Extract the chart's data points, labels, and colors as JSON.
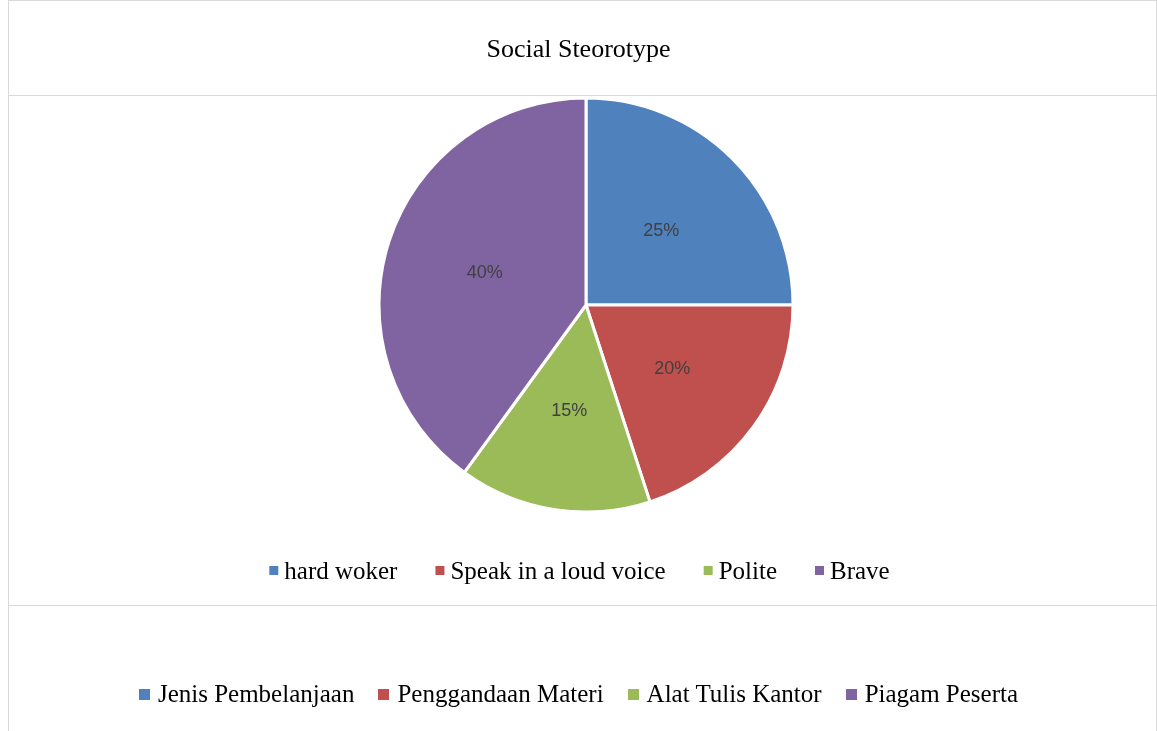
{
  "chart_data": {
    "type": "pie",
    "title": "Social Steorotype",
    "categories": [
      "hard woker",
      "Speak in a loud voice",
      "Polite",
      "Brave"
    ],
    "values": [
      25,
      20,
      15,
      40
    ],
    "colors": [
      "#4f81bd",
      "#c0504d",
      "#9bbb59",
      "#8064a2"
    ],
    "value_labels": [
      "25%",
      "20%",
      "15%",
      "40%"
    ],
    "legend": "bottom",
    "annotations": [
      "Jenis Pembelanjaan",
      "Penggandaan Materi",
      "Alat Tulis Kantor",
      "Piagam Peserta"
    ]
  }
}
